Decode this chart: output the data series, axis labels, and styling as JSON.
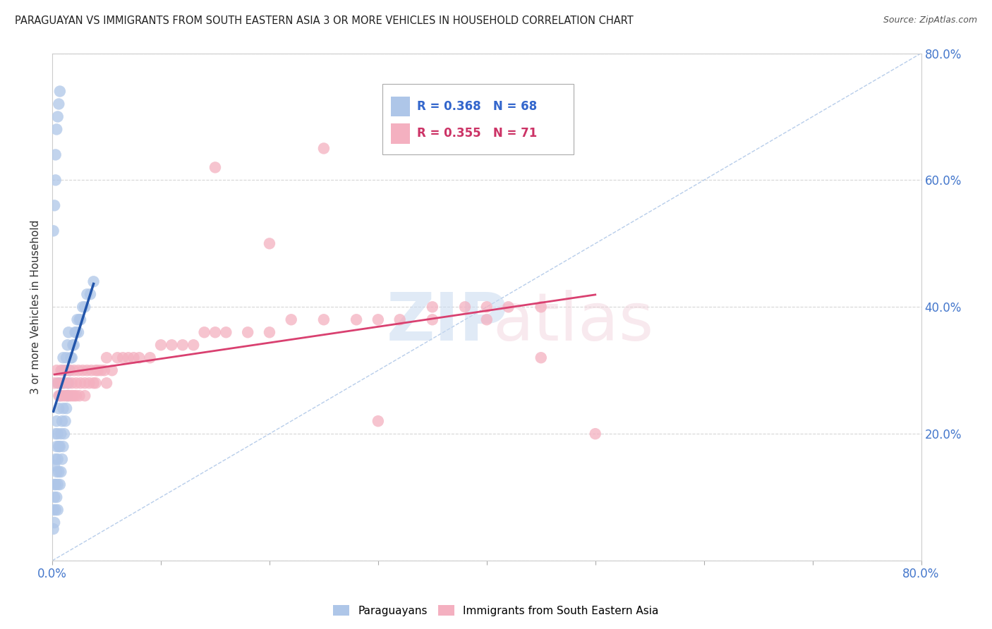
{
  "title": "PARAGUAYAN VS IMMIGRANTS FROM SOUTH EASTERN ASIA 3 OR MORE VEHICLES IN HOUSEHOLD CORRELATION CHART",
  "source": "Source: ZipAtlas.com",
  "ylabel": "3 or more Vehicles in Household",
  "legend1_R": "0.368",
  "legend1_N": "68",
  "legend2_R": "0.355",
  "legend2_N": "71",
  "blue_color": "#aec6e8",
  "blue_line_color": "#2255aa",
  "pink_color": "#f4b0c0",
  "pink_line_color": "#d94070",
  "diagonal_color": "#b0c8e8",
  "xlim": [
    0.0,
    0.8
  ],
  "ylim": [
    0.0,
    0.8
  ],
  "xticks": [
    0.0,
    0.1,
    0.2,
    0.3,
    0.4,
    0.5,
    0.6,
    0.7,
    0.8
  ],
  "yticks": [
    0.0,
    0.2,
    0.4,
    0.6,
    0.8
  ],
  "background_color": "#ffffff",
  "blue_scatter_x": [
    0.001,
    0.001,
    0.002,
    0.002,
    0.002,
    0.002,
    0.003,
    0.003,
    0.003,
    0.003,
    0.004,
    0.004,
    0.004,
    0.004,
    0.005,
    0.005,
    0.005,
    0.005,
    0.005,
    0.006,
    0.006,
    0.006,
    0.007,
    0.007,
    0.007,
    0.008,
    0.008,
    0.008,
    0.009,
    0.009,
    0.009,
    0.01,
    0.01,
    0.01,
    0.011,
    0.011,
    0.012,
    0.012,
    0.013,
    0.013,
    0.014,
    0.014,
    0.015,
    0.015,
    0.016,
    0.017,
    0.018,
    0.019,
    0.02,
    0.021,
    0.022,
    0.023,
    0.024,
    0.025,
    0.026,
    0.028,
    0.03,
    0.032,
    0.035,
    0.038,
    0.001,
    0.002,
    0.003,
    0.003,
    0.004,
    0.005,
    0.006,
    0.007
  ],
  "blue_scatter_y": [
    0.05,
    0.08,
    0.06,
    0.1,
    0.12,
    0.15,
    0.08,
    0.12,
    0.16,
    0.2,
    0.1,
    0.14,
    0.18,
    0.22,
    0.08,
    0.12,
    0.16,
    0.2,
    0.28,
    0.14,
    0.18,
    0.24,
    0.12,
    0.18,
    0.26,
    0.14,
    0.2,
    0.28,
    0.16,
    0.22,
    0.3,
    0.18,
    0.24,
    0.32,
    0.2,
    0.28,
    0.22,
    0.3,
    0.24,
    0.32,
    0.26,
    0.34,
    0.28,
    0.36,
    0.3,
    0.32,
    0.32,
    0.34,
    0.34,
    0.36,
    0.36,
    0.38,
    0.36,
    0.38,
    0.38,
    0.4,
    0.4,
    0.42,
    0.42,
    0.44,
    0.52,
    0.56,
    0.6,
    0.64,
    0.68,
    0.7,
    0.72,
    0.74
  ],
  "pink_scatter_x": [
    0.002,
    0.004,
    0.006,
    0.008,
    0.01,
    0.012,
    0.014,
    0.016,
    0.018,
    0.02,
    0.022,
    0.024,
    0.026,
    0.028,
    0.03,
    0.032,
    0.034,
    0.036,
    0.038,
    0.04,
    0.042,
    0.045,
    0.048,
    0.05,
    0.055,
    0.06,
    0.065,
    0.07,
    0.075,
    0.08,
    0.09,
    0.1,
    0.11,
    0.12,
    0.13,
    0.14,
    0.15,
    0.16,
    0.18,
    0.2,
    0.22,
    0.25,
    0.28,
    0.3,
    0.32,
    0.35,
    0.38,
    0.4,
    0.42,
    0.45,
    0.006,
    0.008,
    0.01,
    0.012,
    0.014,
    0.016,
    0.018,
    0.02,
    0.022,
    0.025,
    0.03,
    0.04,
    0.05,
    0.3,
    0.5,
    0.35,
    0.25,
    0.2,
    0.15,
    0.45,
    0.4
  ],
  "pink_scatter_y": [
    0.28,
    0.3,
    0.28,
    0.3,
    0.28,
    0.3,
    0.28,
    0.3,
    0.28,
    0.3,
    0.28,
    0.3,
    0.28,
    0.3,
    0.28,
    0.3,
    0.28,
    0.3,
    0.28,
    0.3,
    0.3,
    0.3,
    0.3,
    0.32,
    0.3,
    0.32,
    0.32,
    0.32,
    0.32,
    0.32,
    0.32,
    0.34,
    0.34,
    0.34,
    0.34,
    0.36,
    0.36,
    0.36,
    0.36,
    0.36,
    0.38,
    0.38,
    0.38,
    0.38,
    0.38,
    0.4,
    0.4,
    0.4,
    0.4,
    0.4,
    0.26,
    0.26,
    0.26,
    0.26,
    0.26,
    0.26,
    0.26,
    0.26,
    0.26,
    0.26,
    0.26,
    0.28,
    0.28,
    0.22,
    0.2,
    0.38,
    0.65,
    0.5,
    0.62,
    0.32,
    0.38
  ]
}
